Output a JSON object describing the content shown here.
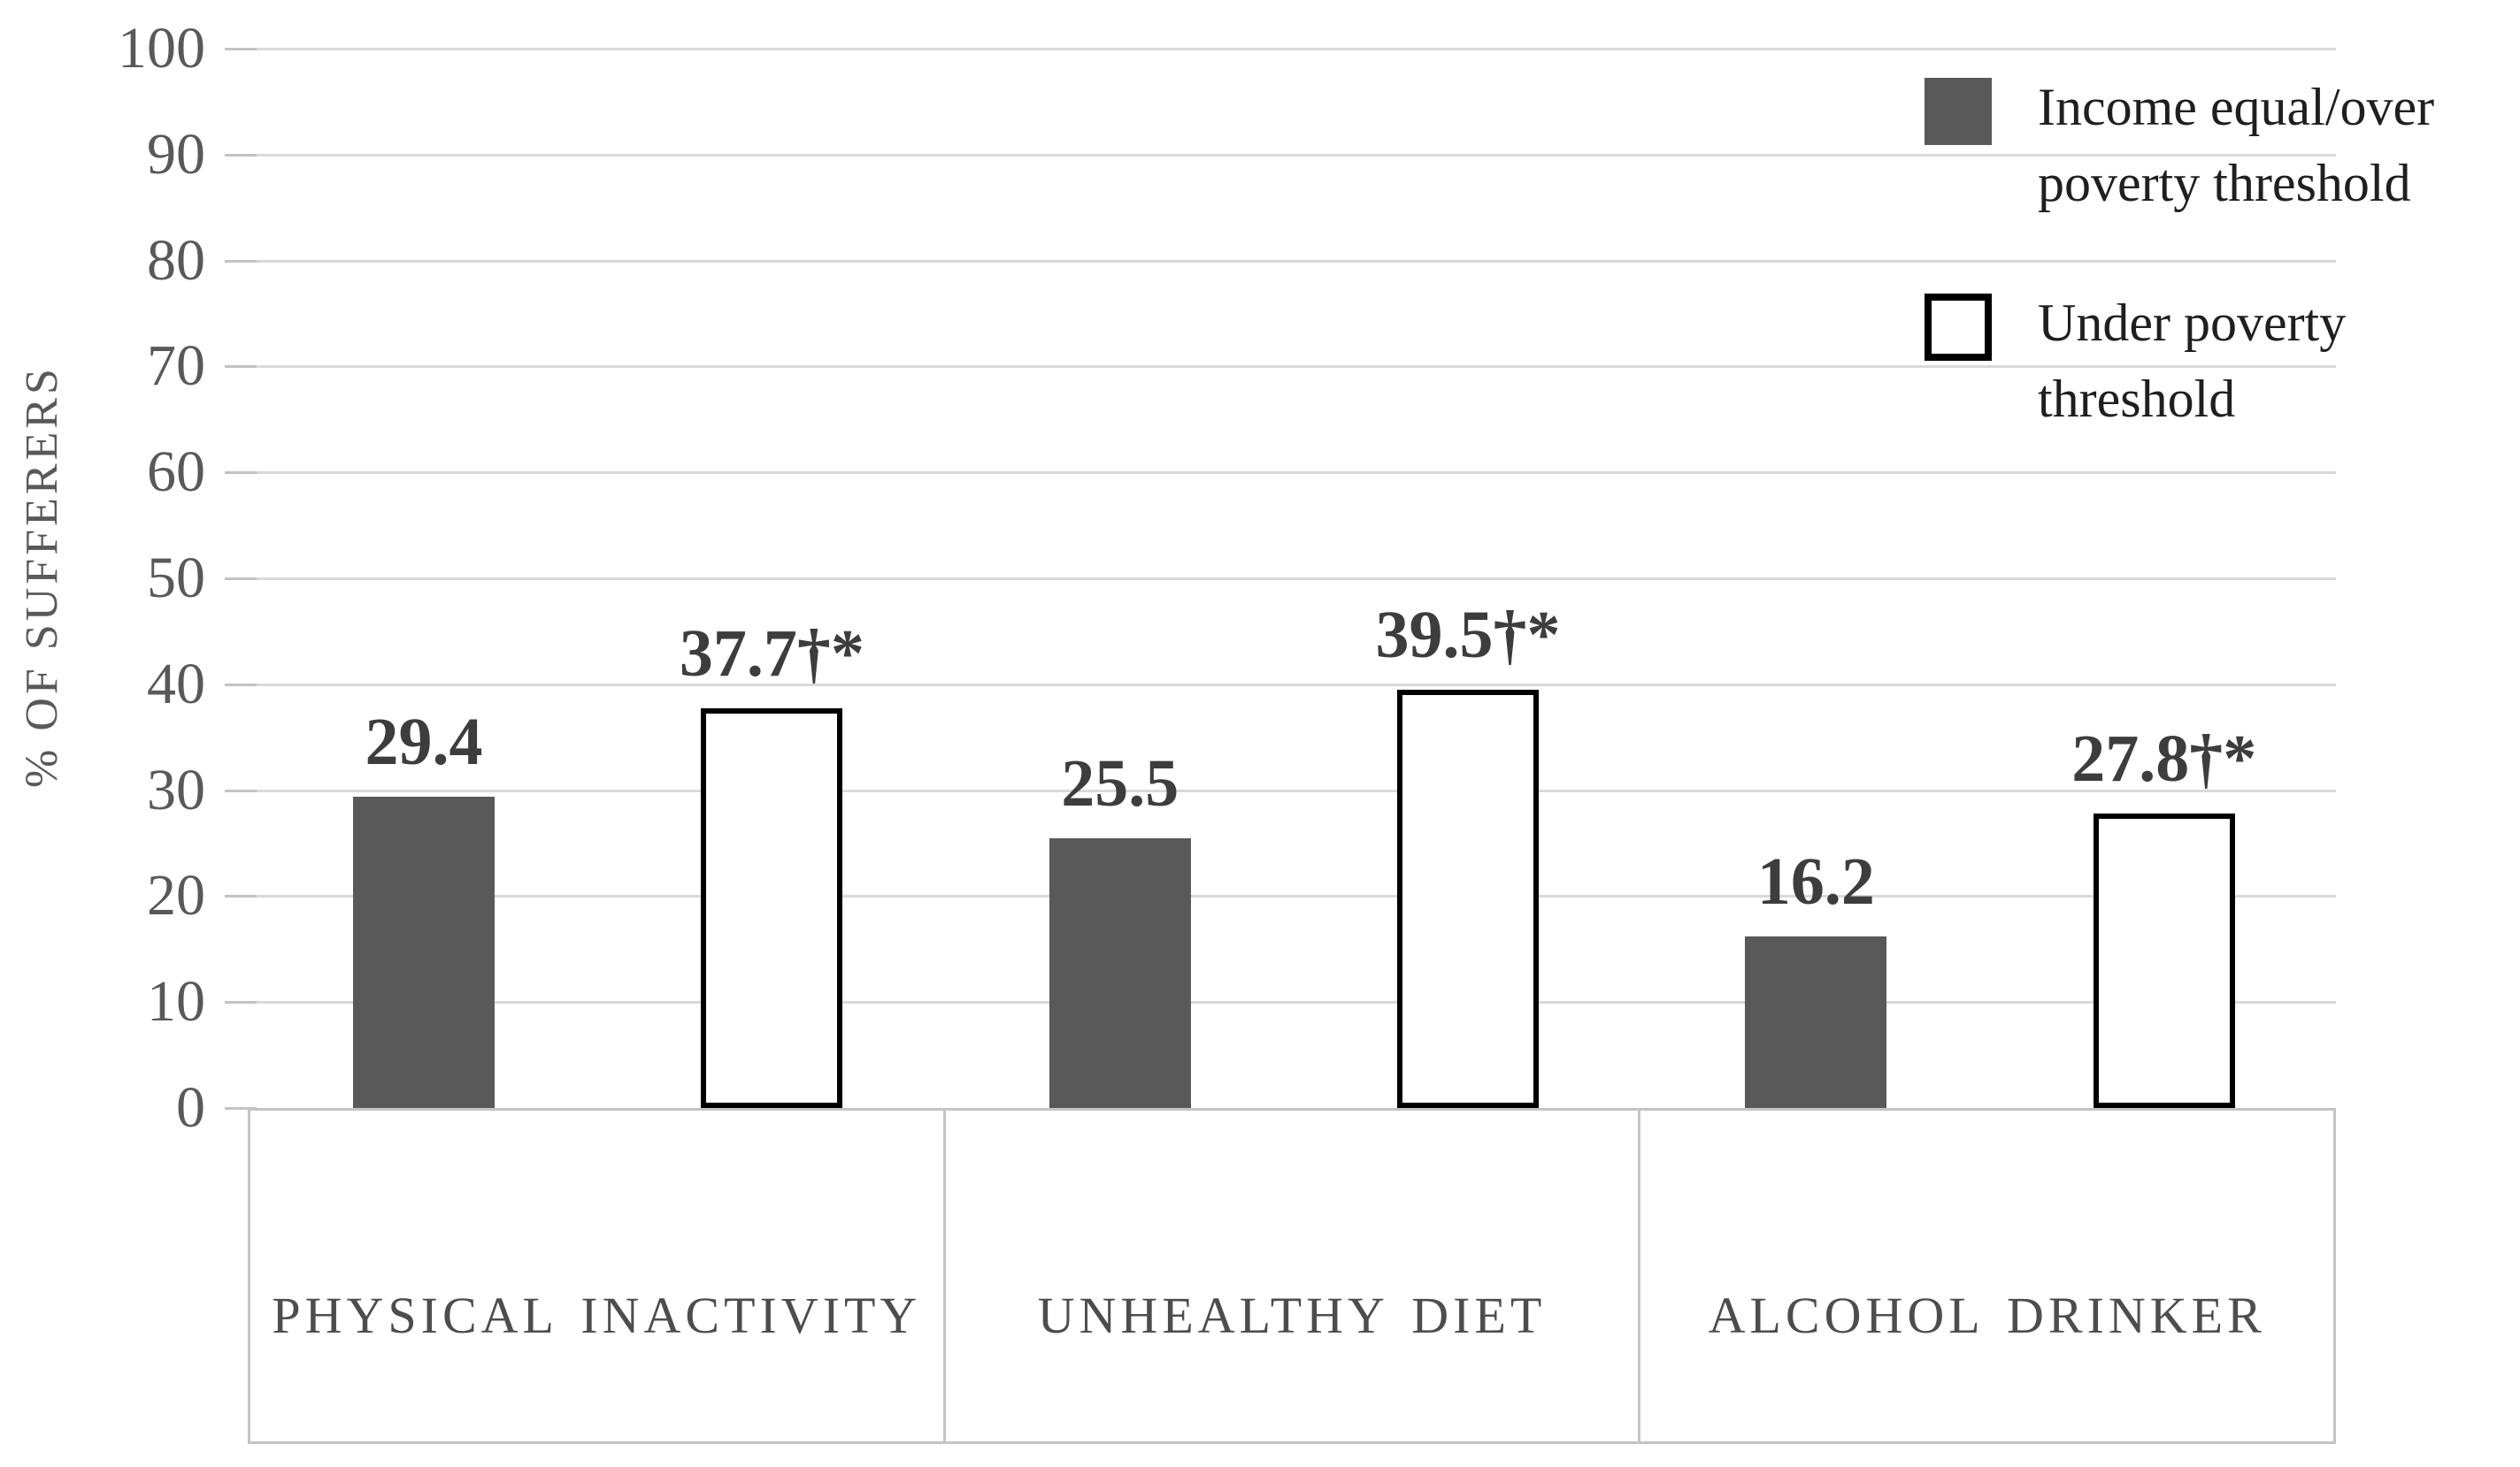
{
  "chart_data": {
    "type": "bar",
    "title": "",
    "ylabel": "% OF SUFFERERS",
    "xlabel": "",
    "ylim": [
      0,
      100
    ],
    "ytick_step": 10,
    "yticks": [
      "100",
      "90",
      "80",
      "70",
      "60",
      "50",
      "40",
      "30",
      "20",
      "10",
      "0"
    ],
    "grid": true,
    "legend_position": "top-right",
    "categories": [
      "PHYSICAL INACTIVITY",
      "UNHEALTHY DIET",
      "ALCOHOL DRINKER"
    ],
    "series": [
      {
        "name": "Income equal/over poverty threshold",
        "values": [
          29.4,
          25.5,
          16.2
        ],
        "labels": [
          "29.4",
          "25.5",
          "16.2"
        ],
        "fill": "#595959",
        "border": "#595959"
      },
      {
        "name": "Under poverty threshold",
        "values": [
          37.7,
          39.5,
          27.8
        ],
        "labels": [
          "37.7†*",
          "39.5†*",
          "27.8†*"
        ],
        "fill": "#ffffff",
        "border": "#000000"
      }
    ]
  },
  "legend": {
    "items": [
      {
        "label": "Income equal/over poverty threshold",
        "swatch": "filled-square"
      },
      {
        "label": "Under poverty threshold",
        "swatch": "outlined-square"
      }
    ]
  },
  "colors": {
    "bar_fill_dark": "#595959",
    "bar_outline": "#000000",
    "gridline": "#d9d9d9",
    "axis_box_border": "#c4c4c4",
    "tick_label_text": "#595959",
    "data_label_text": "#3d3d3d",
    "category_label_text": "#4d4d4d",
    "legend_text": "#1f1f1f",
    "background": "#ffffff"
  }
}
